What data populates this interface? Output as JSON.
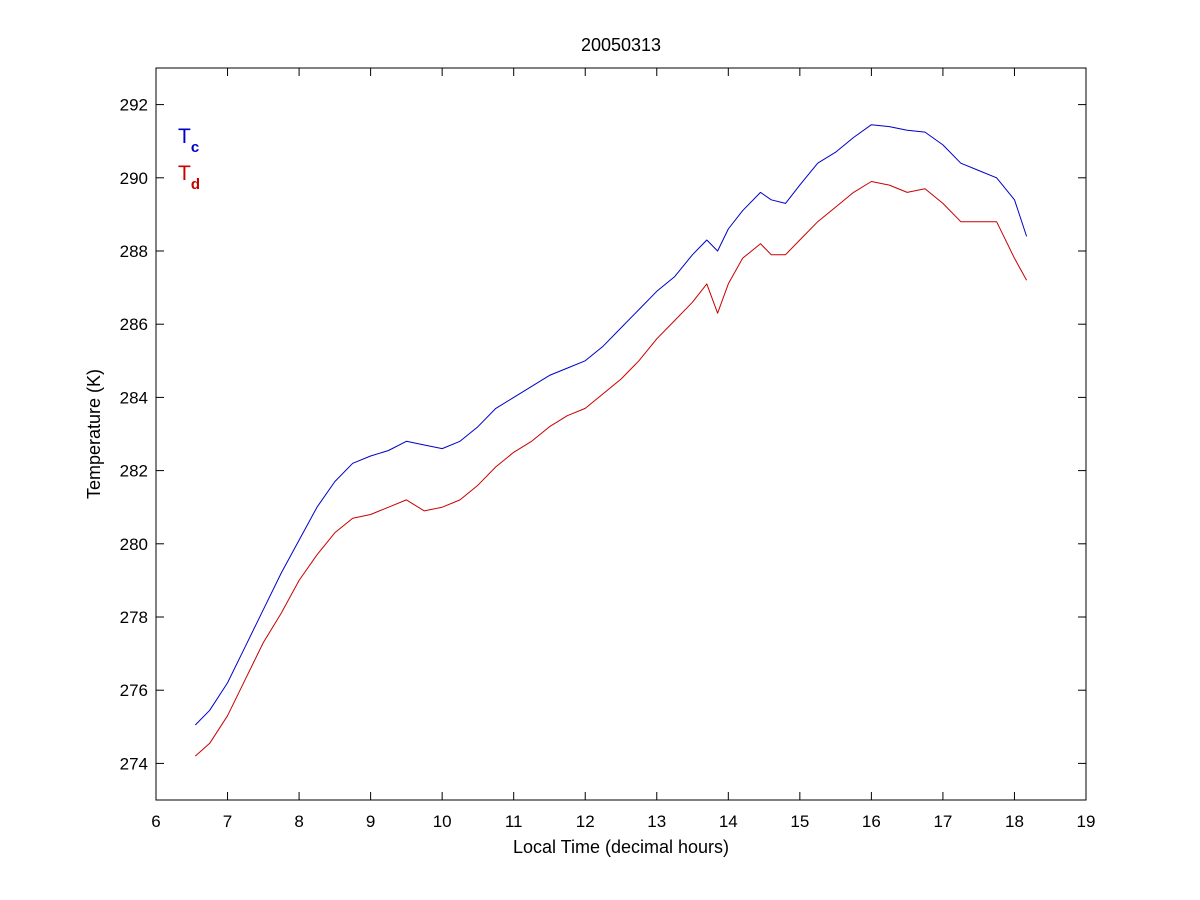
{
  "chart_data": {
    "type": "line",
    "title": "20050313",
    "xlabel": "Local Time (decimal hours)",
    "ylabel": "Temperature (K)",
    "xlim": [
      6,
      19
    ],
    "ylim": [
      273,
      293
    ],
    "xticks": [
      6,
      7,
      8,
      9,
      10,
      11,
      12,
      13,
      14,
      15,
      16,
      17,
      18,
      19
    ],
    "yticks": [
      274,
      276,
      278,
      280,
      282,
      284,
      286,
      288,
      290,
      292
    ],
    "grid": false,
    "legend": {
      "placement": "top-left"
    },
    "series": [
      {
        "key": "Tc",
        "label_main": "T",
        "label_sub": "c",
        "color": "#0000c8",
        "x": [
          6.55,
          6.75,
          7.0,
          7.25,
          7.5,
          7.75,
          8.0,
          8.25,
          8.5,
          8.75,
          9.0,
          9.25,
          9.5,
          9.75,
          10.0,
          10.25,
          10.5,
          10.75,
          11.0,
          11.25,
          11.5,
          11.75,
          12.0,
          12.25,
          12.5,
          12.75,
          13.0,
          13.25,
          13.5,
          13.7,
          13.85,
          14.0,
          14.2,
          14.45,
          14.6,
          14.8,
          15.0,
          15.25,
          15.5,
          15.75,
          16.0,
          16.25,
          16.5,
          16.75,
          17.0,
          17.25,
          17.5,
          17.75,
          18.0,
          18.17
        ],
        "y": [
          275.05,
          275.45,
          276.2,
          277.2,
          278.2,
          279.2,
          280.1,
          281.0,
          281.7,
          282.2,
          282.4,
          282.55,
          282.8,
          282.7,
          282.6,
          282.8,
          283.2,
          283.7,
          284.0,
          284.3,
          284.6,
          284.8,
          285.0,
          285.4,
          285.9,
          286.4,
          286.9,
          287.3,
          287.9,
          288.3,
          288.0,
          288.6,
          289.1,
          289.6,
          289.4,
          289.3,
          289.8,
          290.4,
          290.7,
          291.1,
          291.45,
          291.4,
          291.3,
          291.25,
          290.9,
          290.4,
          290.2,
          290.0,
          289.4,
          288.4
        ]
      },
      {
        "key": "Td",
        "label_main": "T",
        "label_sub": "d",
        "color": "#c80000",
        "x": [
          6.55,
          6.75,
          7.0,
          7.25,
          7.5,
          7.75,
          8.0,
          8.25,
          8.5,
          8.75,
          9.0,
          9.25,
          9.5,
          9.75,
          10.0,
          10.25,
          10.5,
          10.75,
          11.0,
          11.25,
          11.5,
          11.75,
          12.0,
          12.25,
          12.5,
          12.75,
          13.0,
          13.25,
          13.5,
          13.7,
          13.85,
          14.0,
          14.2,
          14.45,
          14.6,
          14.8,
          15.0,
          15.25,
          15.5,
          15.75,
          16.0,
          16.25,
          16.5,
          16.75,
          17.0,
          17.25,
          17.5,
          17.75,
          18.0,
          18.17
        ],
        "y": [
          274.2,
          274.55,
          275.3,
          276.3,
          277.3,
          278.1,
          279.0,
          279.7,
          280.3,
          280.7,
          280.8,
          281.0,
          281.2,
          280.9,
          281.0,
          281.2,
          281.6,
          282.1,
          282.5,
          282.8,
          283.2,
          283.5,
          283.7,
          284.1,
          284.5,
          285.0,
          285.6,
          286.1,
          286.6,
          287.1,
          286.3,
          287.1,
          287.8,
          288.2,
          287.9,
          287.9,
          288.3,
          288.8,
          289.2,
          289.6,
          289.9,
          289.8,
          289.6,
          289.7,
          289.3,
          288.8,
          288.8,
          288.8,
          287.8,
          287.2
        ]
      }
    ]
  }
}
